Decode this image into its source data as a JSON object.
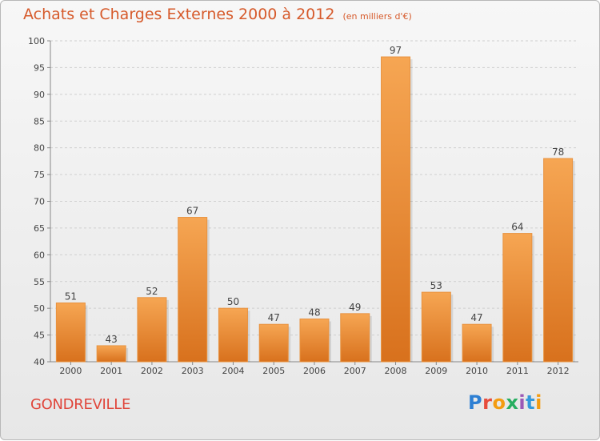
{
  "header": {
    "title": "Achats et Charges Externes 2000 à 2012",
    "subtitle": "(en milliers d'€)"
  },
  "footer": {
    "commune": "GONDREVILLE",
    "logo_text": "Proxiti"
  },
  "colors": {
    "bar_light": "#f6a653",
    "bar_dark": "#d8711d",
    "title": "#d65a2b",
    "commune": "#e0453a"
  },
  "chart_data": {
    "type": "bar",
    "title": "Achats et Charges Externes 2000 à 2012",
    "subtitle": "(en milliers d'€)",
    "categories": [
      "2000",
      "2001",
      "2002",
      "2003",
      "2004",
      "2005",
      "2006",
      "2007",
      "2008",
      "2009",
      "2010",
      "2011",
      "2012"
    ],
    "values": [
      51,
      43,
      52,
      67,
      50,
      47,
      48,
      49,
      97,
      53,
      47,
      64,
      78
    ],
    "ylim": [
      40,
      100
    ],
    "yticks": [
      40,
      45,
      50,
      55,
      60,
      65,
      70,
      75,
      80,
      85,
      90,
      95,
      100
    ],
    "grid": true,
    "legend": "none",
    "data_labels": true
  }
}
